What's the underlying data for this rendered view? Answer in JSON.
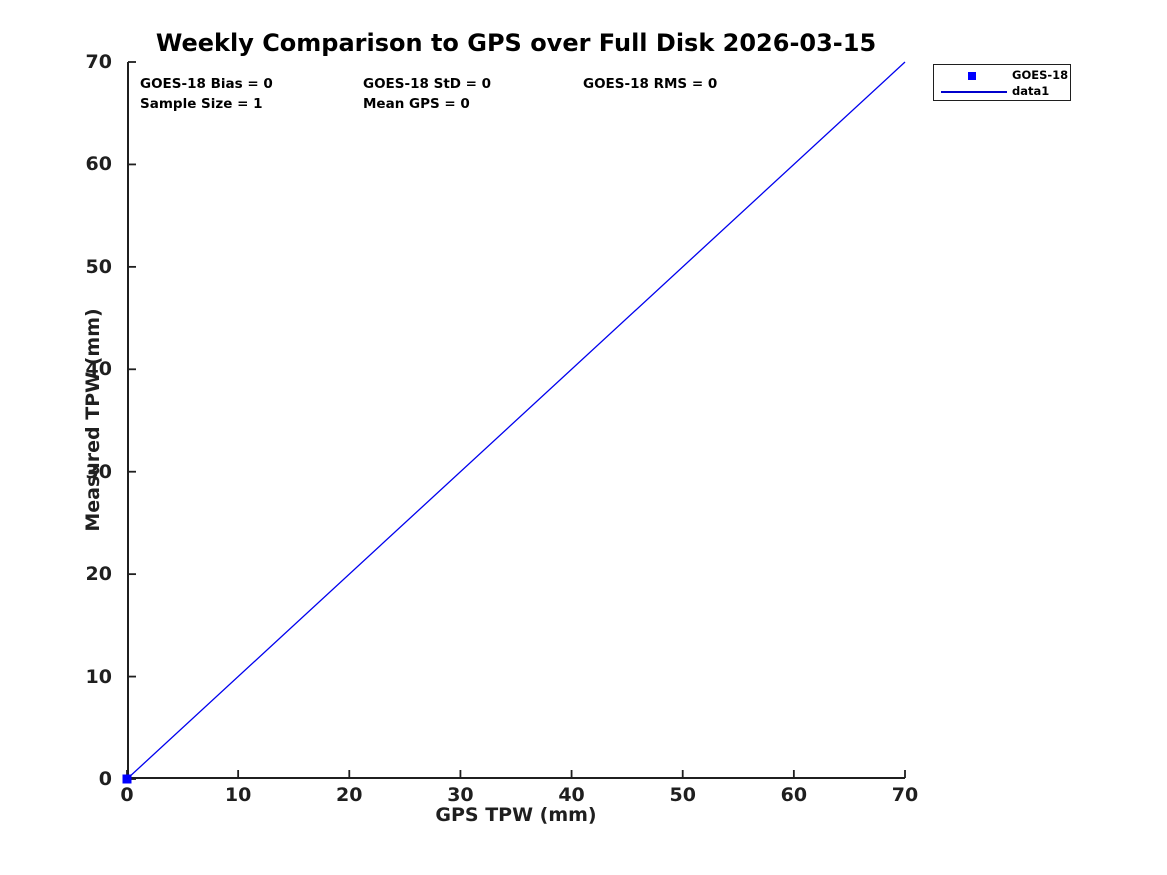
{
  "title": "Weekly Comparison to GPS over Full Disk 2026-03-15",
  "stats_text": {
    "bias": "GOES-18 Bias = 0",
    "std": "GOES-18 StD = 0",
    "rms": "GOES-18 RMS = 0",
    "sample": "Sample Size = 1",
    "mean_gps": "Mean GPS = 0"
  },
  "axes": {
    "xlabel": "GPS TPW (mm)",
    "ylabel": "Measured TPW (mm)"
  },
  "legend": {
    "entries": [
      {
        "label": "GOES-18",
        "symbol": "square-marker",
        "color": "#0000ff"
      },
      {
        "label": "data1",
        "symbol": "line",
        "color": "#0000cc"
      }
    ]
  },
  "colors": {
    "line_blue": "#0000ee",
    "marker_blue": "#0000ff",
    "axis": "#1f1f1f",
    "text": "#000000",
    "background": "#ffffff"
  },
  "chart_data": {
    "type": "line",
    "title": "Weekly Comparison to GPS over Full Disk 2026-03-15",
    "xlabel": "GPS TPW (mm)",
    "ylabel": "Measured TPW (mm)",
    "xlim": [
      0,
      70
    ],
    "ylim": [
      0,
      70
    ],
    "xticks": [
      0,
      10,
      20,
      30,
      40,
      50,
      60,
      70
    ],
    "yticks": [
      0,
      10,
      20,
      30,
      40,
      50,
      60,
      70
    ],
    "grid": false,
    "legend_position": "outside-top-right",
    "series": [
      {
        "name": "GOES-18",
        "type": "scatter",
        "marker": "square",
        "marker_size": 9,
        "color": "#0000ff",
        "x": [
          0
        ],
        "y": [
          0
        ]
      },
      {
        "name": "data1",
        "type": "line",
        "color": "#0000ee",
        "line_width": 1.3,
        "x": [
          0,
          70
        ],
        "y": [
          0,
          70
        ]
      }
    ],
    "stats": {
      "bias": 0,
      "std": 0,
      "rms": 0,
      "sample_size": 1,
      "mean_gps": 0
    }
  }
}
